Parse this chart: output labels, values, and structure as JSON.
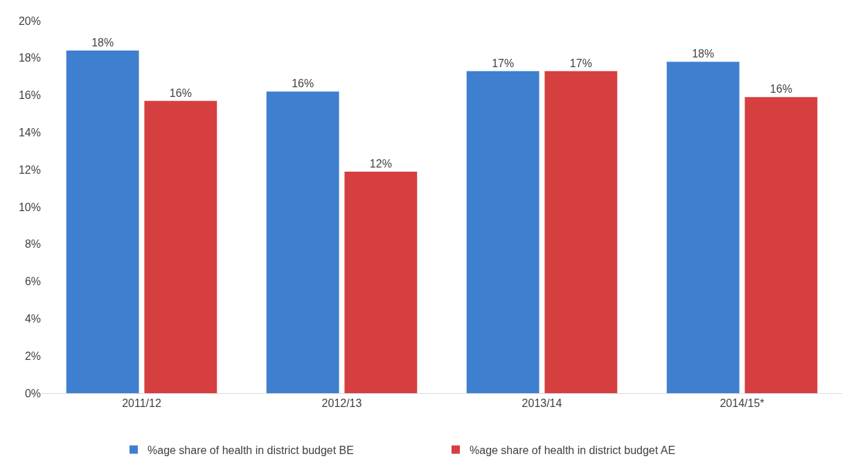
{
  "chart_data": {
    "type": "bar",
    "categories": [
      "2011/12",
      "2012/13",
      "2013/14",
      "2014/15*"
    ],
    "series": [
      {
        "name": "%age share of health in district budget BE",
        "color": "#3f7fcf",
        "values": [
          18.4,
          16.2,
          17.3,
          17.8
        ],
        "value_labels": [
          "18%",
          "16%",
          "17%",
          "18%"
        ]
      },
      {
        "name": "%age share of health in district budget AE",
        "color": "#d63f3f",
        "values": [
          15.7,
          11.9,
          17.3,
          15.9
        ],
        "value_labels": [
          "16%",
          "12%",
          "17%",
          "16%"
        ]
      }
    ],
    "ylim": [
      0,
      20
    ],
    "yticks": [
      {
        "value": 0,
        "label": "0%"
      },
      {
        "value": 2,
        "label": "2%"
      },
      {
        "value": 4,
        "label": "4%"
      },
      {
        "value": 6,
        "label": "6%"
      },
      {
        "value": 8,
        "label": "8%"
      },
      {
        "value": 10,
        "label": "10%"
      },
      {
        "value": 12,
        "label": "12%"
      },
      {
        "value": 14,
        "label": "14%"
      },
      {
        "value": 16,
        "label": "16%"
      },
      {
        "value": 18,
        "label": "18%"
      },
      {
        "value": 20,
        "label": "20%"
      }
    ],
    "legend": "bottom"
  }
}
